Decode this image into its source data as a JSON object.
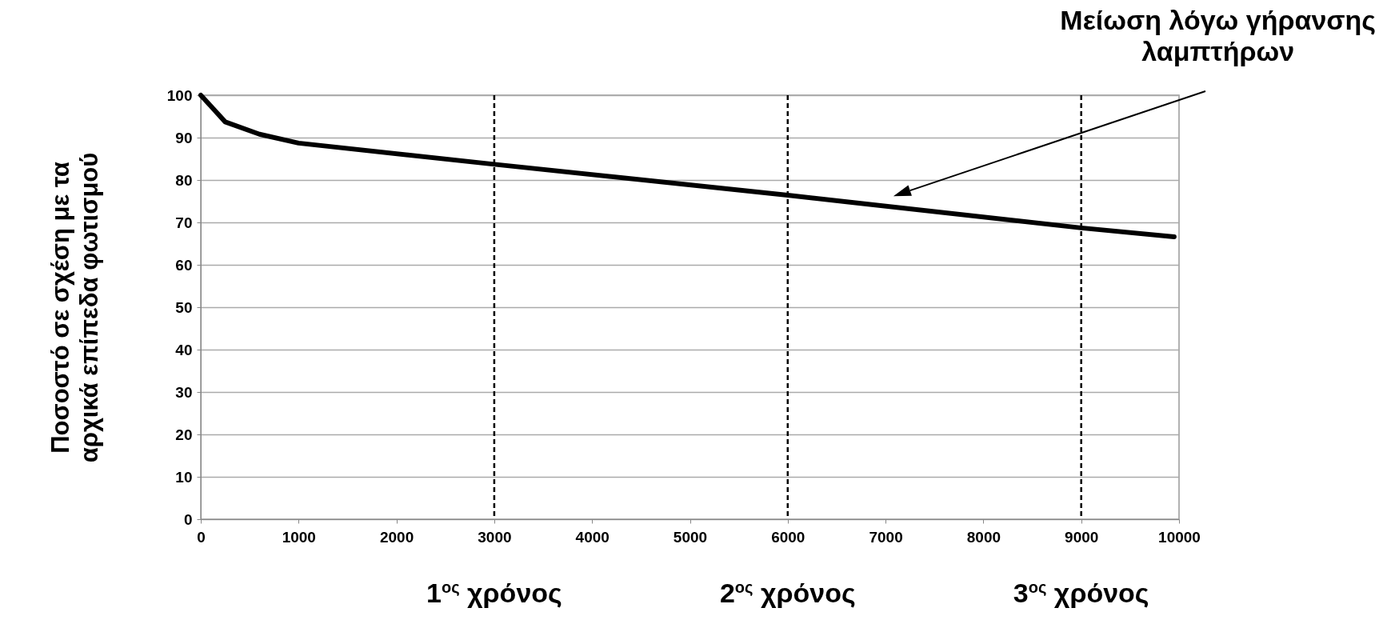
{
  "chart_data": {
    "type": "line",
    "ylabel": "Ποσοστό σε σχέση με τα\nαρχικά επίπεδα φωτισμού",
    "x": [
      0,
      100,
      250,
      600,
      1000,
      3000,
      6000,
      9000,
      9950
    ],
    "series": [
      {
        "color": "#000000",
        "values": [
          100,
          97.5,
          93.7,
          90.8,
          88.7,
          83.7,
          76.4,
          68.7,
          66.6
        ]
      }
    ],
    "xlim": [
      0,
      10000
    ],
    "xticks": [
      0,
      1000,
      2000,
      3000,
      4000,
      5000,
      6000,
      7000,
      8000,
      9000,
      10000
    ],
    "ylim": [
      0,
      100
    ],
    "yticks": [
      0,
      10,
      20,
      30,
      40,
      50,
      60,
      70,
      80,
      90,
      100
    ],
    "grid": "y",
    "marker": "none",
    "line_style": "solid",
    "ref_lines": [
      {
        "axis": "x",
        "value": 3000,
        "label": "1$^{ος}$ χρόνος",
        "line_style": "dashed",
        "color": "#000000"
      },
      {
        "axis": "x",
        "value": 6000,
        "label": "2$^{ος}$ χρόνος",
        "line_style": "dashed",
        "color": "#000000"
      },
      {
        "axis": "x",
        "value": 9000,
        "label": "3$^{ος}$ χρόνος",
        "line_style": "dashed",
        "color": "#000000"
      }
    ],
    "annotations": [
      "Μείωση λόγω γήρανσης\nλαμπτήρων"
    ]
  }
}
